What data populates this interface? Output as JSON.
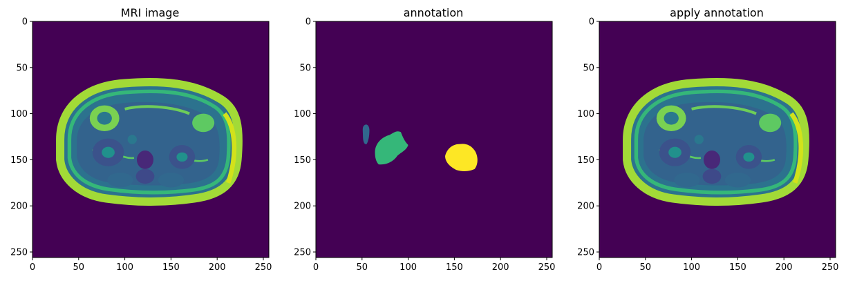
{
  "figure": {
    "panels": [
      {
        "id": "mri",
        "title": "MRI image",
        "xticks": [
          0,
          50,
          100,
          150,
          200,
          250
        ],
        "yticks": [
          0,
          50,
          100,
          150,
          200,
          250
        ],
        "xlim": [
          0,
          256
        ],
        "ylim": [
          256,
          0
        ]
      },
      {
        "id": "annotation",
        "title": "annotation",
        "xticks": [
          0,
          50,
          100,
          150,
          200,
          250
        ],
        "yticks": [
          0,
          50,
          100,
          150,
          200,
          250
        ],
        "xlim": [
          0,
          256
        ],
        "ylim": [
          256,
          0
        ]
      },
      {
        "id": "apply",
        "title": "apply annotation",
        "xticks": [
          0,
          50,
          100,
          150,
          200,
          250
        ],
        "yticks": [
          0,
          50,
          100,
          150,
          200,
          250
        ],
        "xlim": [
          0,
          256
        ],
        "ylim": [
          256,
          0
        ]
      }
    ],
    "colors": {
      "background": "#440154",
      "label_1": "#31688e",
      "label_2": "#35b779",
      "label_3": "#fde725",
      "tissue_bright": "#b8de29",
      "tissue_mid": "#2a788e",
      "tissue_dark": "#3b528b"
    }
  }
}
